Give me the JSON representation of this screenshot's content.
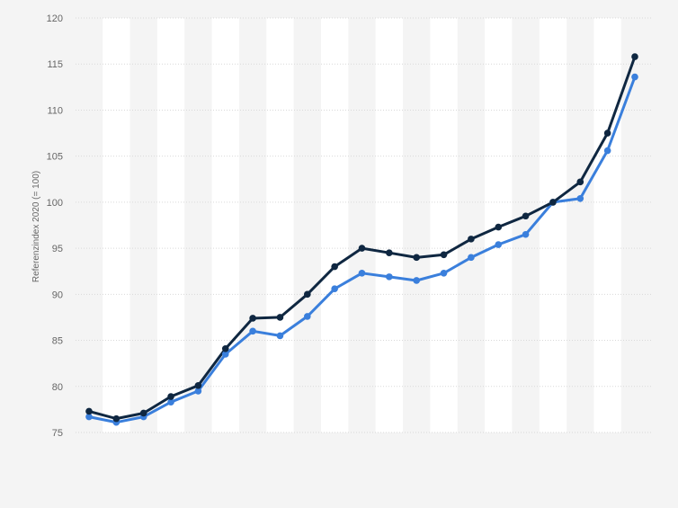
{
  "chart_data": {
    "type": "line",
    "title": "",
    "xlabel": "",
    "ylabel": "Referenzindex 2020 (= 100)",
    "ylim": [
      75,
      120
    ],
    "yticks": [
      75,
      80,
      85,
      90,
      95,
      100,
      105,
      110,
      115,
      120
    ],
    "grid": true,
    "point_count": 21,
    "series": [
      {
        "color": "#0f2741",
        "values": [
          77.3,
          76.5,
          77.1,
          78.9,
          80.1,
          84.1,
          87.4,
          87.5,
          90.0,
          93.0,
          95.0,
          94.5,
          94.0,
          94.3,
          96.0,
          97.3,
          98.5,
          100.0,
          102.2,
          107.5,
          115.8
        ]
      },
      {
        "color": "#3a7fdc",
        "values": [
          76.7,
          76.1,
          76.7,
          78.3,
          79.5,
          83.5,
          86.0,
          85.5,
          87.6,
          90.6,
          92.3,
          91.9,
          91.5,
          92.3,
          94.0,
          95.4,
          96.5,
          100.0,
          100.4,
          105.6,
          113.6
        ]
      }
    ]
  }
}
